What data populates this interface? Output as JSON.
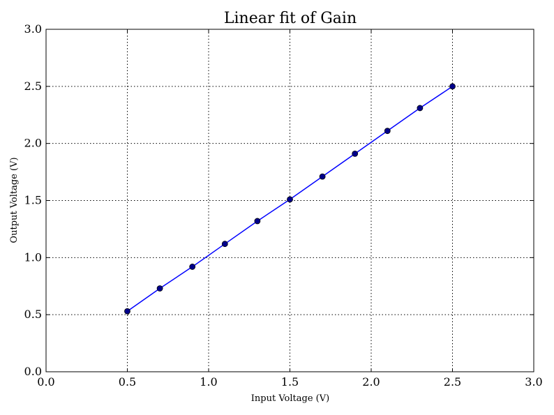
{
  "chart_data": {
    "type": "line",
    "title": "Linear fit of Gain",
    "xlabel": "Input Voltage (V)",
    "ylabel": "Output Voltage (V)",
    "xlim": [
      0.0,
      3.0
    ],
    "ylim": [
      0.0,
      3.0
    ],
    "xticks": [
      "0.0",
      "0.5",
      "1.0",
      "1.5",
      "2.0",
      "2.5",
      "3.0"
    ],
    "yticks": [
      "0.0",
      "0.5",
      "1.0",
      "1.5",
      "2.0",
      "2.5",
      "3.0"
    ],
    "grid": true,
    "series": [
      {
        "x": [
          0.5,
          0.7,
          0.9,
          1.1,
          1.3,
          1.5,
          1.7,
          1.9,
          2.1,
          2.3,
          2.5
        ],
        "y": [
          0.53,
          0.73,
          0.92,
          1.12,
          1.32,
          1.51,
          1.71,
          1.91,
          2.11,
          2.31,
          2.5
        ],
        "color": "#0000ff",
        "marker_color": "#00008b"
      }
    ]
  }
}
